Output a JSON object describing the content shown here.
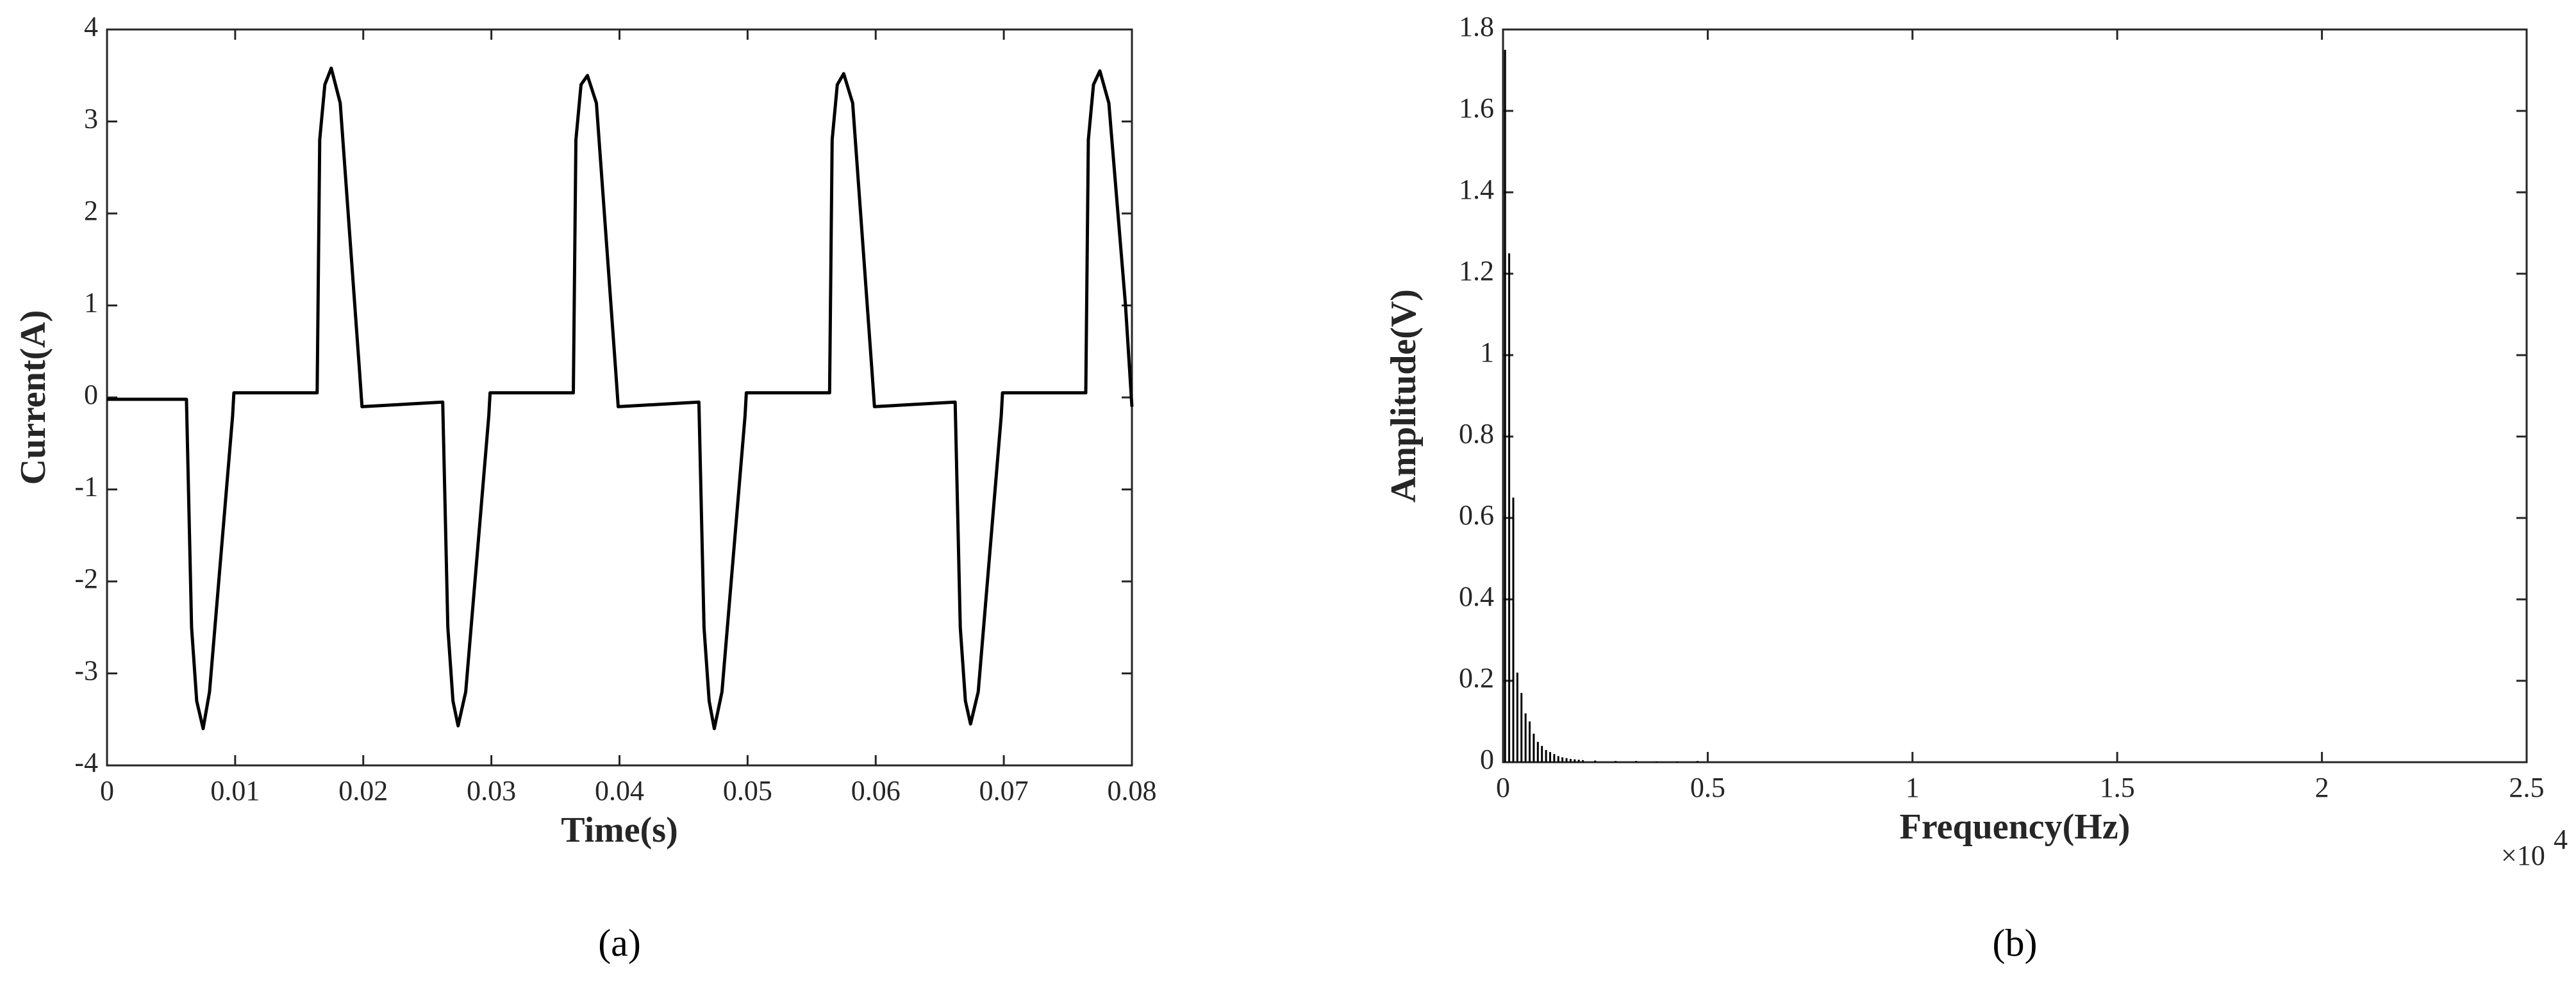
{
  "chart_data": [
    {
      "type": "line",
      "xlabel": "Time(s)",
      "ylabel": "Current(A)",
      "caption": "(a)",
      "color": "#000000",
      "x": [
        0.0,
        0.0062,
        0.0066,
        0.007,
        0.0075,
        0.008,
        0.0098,
        0.0099,
        0.0164,
        0.0166,
        0.017,
        0.0175,
        0.0182,
        0.0197,
        0.0199,
        0.0262,
        0.0266,
        0.027,
        0.0274,
        0.028,
        0.0298,
        0.0299,
        0.0364,
        0.0366,
        0.037,
        0.0375,
        0.0382,
        0.0397,
        0.0399,
        0.0462,
        0.0466,
        0.047,
        0.0474,
        0.048,
        0.0498,
        0.0499,
        0.0564,
        0.0566,
        0.057,
        0.0575,
        0.0582,
        0.0597,
        0.0599,
        0.0662,
        0.0666,
        0.067,
        0.0674,
        0.068,
        0.0698,
        0.0699,
        0.0764,
        0.0766,
        0.077,
        0.0775,
        0.0782,
        0.0795,
        0.08
      ],
      "values": [
        -0.02,
        -0.02,
        -2.5,
        -3.3,
        -3.6,
        -3.2,
        -0.2,
        0.05,
        0.05,
        2.8,
        3.4,
        3.58,
        3.2,
        0.3,
        -0.1,
        -0.05,
        -2.5,
        -3.3,
        -3.57,
        -3.2,
        -0.2,
        0.05,
        0.05,
        2.8,
        3.4,
        3.5,
        3.2,
        0.3,
        -0.1,
        -0.05,
        -2.5,
        -3.3,
        -3.6,
        -3.2,
        -0.2,
        0.05,
        0.05,
        2.8,
        3.4,
        3.52,
        3.2,
        0.3,
        -0.1,
        -0.05,
        -2.5,
        -3.3,
        -3.55,
        -3.2,
        -0.2,
        0.05,
        0.05,
        2.8,
        3.4,
        3.55,
        3.2,
        1.0,
        -0.1
      ],
      "xlim": [
        0,
        0.08
      ],
      "xticks": [
        0,
        0.01,
        0.02,
        0.03,
        0.04,
        0.05,
        0.06,
        0.07,
        0.08
      ],
      "ylim": [
        -4,
        4
      ],
      "yticks": [
        -4,
        -3,
        -2,
        -1,
        0,
        1,
        2,
        3,
        4
      ]
    },
    {
      "type": "bar",
      "xlabel": "Frequency(Hz)",
      "ylabel": "Amplitude(V)",
      "caption": "(b)",
      "color": "#000000",
      "x_multiplier": "×10",
      "x_multiplier_exponent": "4",
      "x": [
        50,
        150,
        250,
        350,
        450,
        550,
        650,
        750,
        850,
        950,
        1050,
        1150,
        1250,
        1350,
        1450,
        1550,
        1650,
        1750,
        1850,
        1950,
        2250,
        2750,
        3250,
        3750,
        4250,
        4750
      ],
      "values": [
        1.75,
        1.25,
        0.65,
        0.22,
        0.17,
        0.12,
        0.1,
        0.07,
        0.05,
        0.04,
        0.03,
        0.025,
        0.02,
        0.015,
        0.012,
        0.01,
        0.008,
        0.007,
        0.006,
        0.005,
        0.004,
        0.003,
        0.003,
        0.002,
        0.002,
        0.003
      ],
      "xlim": [
        0,
        25000
      ],
      "xticks": [
        0,
        {
          "value": 5000,
          "label": "0.5"
        },
        {
          "value": 10000,
          "label": "1"
        },
        {
          "value": 15000,
          "label": "1.5"
        },
        {
          "value": 20000,
          "label": "2"
        },
        {
          "value": 25000,
          "label": "2.5"
        }
      ],
      "ylim": [
        0,
        1.8
      ],
      "yticks": [
        0,
        0.2,
        0.4,
        0.6,
        0.8,
        1,
        1.2,
        1.4,
        1.6,
        1.8
      ]
    }
  ]
}
